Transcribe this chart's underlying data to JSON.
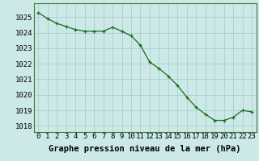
{
  "hours": [
    0,
    1,
    2,
    3,
    4,
    5,
    6,
    7,
    8,
    9,
    10,
    11,
    12,
    13,
    14,
    15,
    16,
    17,
    18,
    19,
    20,
    21,
    22,
    23
  ],
  "pressure": [
    1025.3,
    1024.9,
    1024.6,
    1024.4,
    1024.2,
    1024.1,
    1024.1,
    1024.1,
    1024.35,
    1024.1,
    1023.8,
    1023.2,
    1022.1,
    1021.7,
    1021.2,
    1020.6,
    1019.85,
    1019.2,
    1018.75,
    1018.35,
    1018.35,
    1018.55,
    1019.0,
    1018.9
  ],
  "line_color": "#1a6b1a",
  "marker": "+",
  "bg_color": "#cce9e8",
  "grid_color": "#aacfce",
  "xlabel": "Graphe pression niveau de la mer (hPa)",
  "ylim_min": 1017.6,
  "ylim_max": 1025.9,
  "yticks": [
    1018,
    1019,
    1020,
    1021,
    1022,
    1023,
    1024,
    1025
  ],
  "tick_fontsize": 6.5,
  "xlabel_fontsize": 7.5
}
